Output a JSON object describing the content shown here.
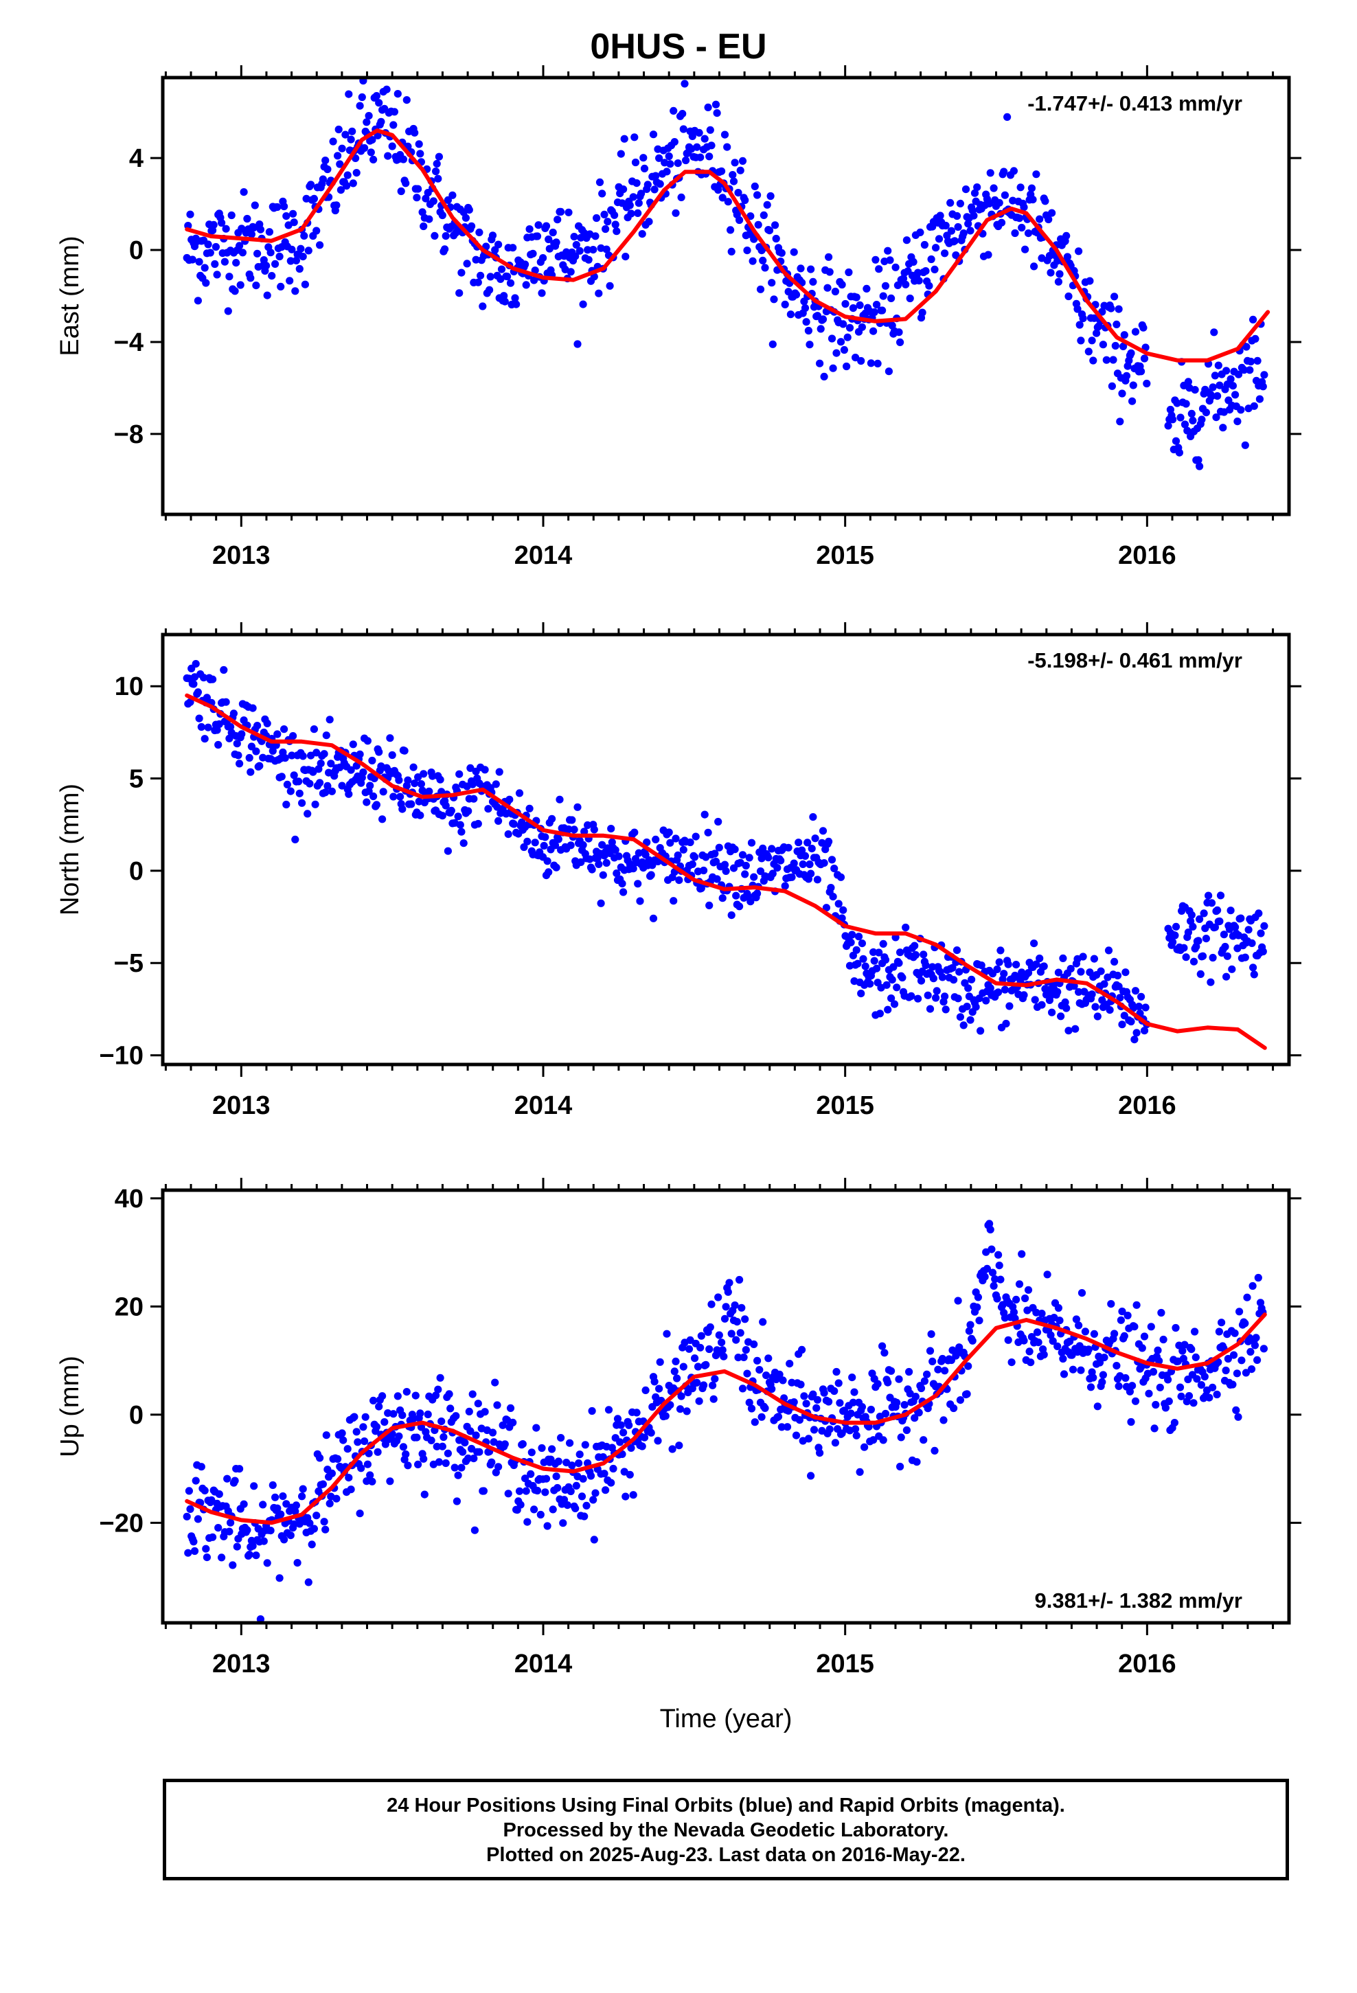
{
  "title": "0HUS - EU",
  "xlabel": "Time (year)",
  "footer": [
    "24 Hour Positions Using Final Orbits (blue) and Rapid Orbits (magenta).",
    "Processed by the Nevada Geodetic Laboratory.",
    "Plotted on 2025-Aug-23. Last data on 2016-May-22."
  ],
  "colors": {
    "final_orbits": "#0000ff",
    "model_fit": "#ff0000",
    "axes": "#000000"
  },
  "chart_data": [
    {
      "type": "scatter",
      "ylabel": "East (mm)",
      "rate": "-1.747+/- 0.413 mm/yr",
      "rate_position": "top-right",
      "xlim": [
        2012.74,
        2016.47
      ],
      "ylim": [
        -11.5,
        7.5
      ],
      "x_ticks": [
        2013,
        2014,
        2015,
        2016
      ],
      "x_tick_labels": [
        "2013",
        "2014",
        "2015",
        "2016"
      ],
      "y_ticks": [
        4,
        0,
        -4,
        -8
      ],
      "y_tick_labels": [
        "4",
        "0",
        "−4",
        "−8"
      ],
      "grid": false,
      "fit_line": {
        "x": [
          2012.82,
          2012.9,
          2013.0,
          2013.1,
          2013.2,
          2013.3,
          2013.4,
          2013.45,
          2013.5,
          2013.6,
          2013.7,
          2013.8,
          2013.9,
          2014.0,
          2014.1,
          2014.2,
          2014.3,
          2014.4,
          2014.47,
          2014.55,
          2014.6,
          2014.7,
          2014.8,
          2014.9,
          2015.0,
          2015.1,
          2015.2,
          2015.3,
          2015.4,
          2015.47,
          2015.55,
          2015.6,
          2015.7,
          2015.8,
          2015.9,
          2016.0,
          2016.1,
          2016.2,
          2016.3,
          2016.4
        ],
        "y": [
          0.9,
          0.6,
          0.5,
          0.4,
          0.9,
          2.8,
          4.8,
          5.2,
          5.0,
          3.5,
          1.4,
          0.0,
          -0.8,
          -1.2,
          -1.3,
          -0.8,
          0.8,
          2.6,
          3.4,
          3.4,
          2.9,
          0.8,
          -1.0,
          -2.2,
          -2.9,
          -3.1,
          -3.0,
          -1.8,
          0.0,
          1.3,
          1.8,
          1.6,
          0.0,
          -2.2,
          -3.8,
          -4.5,
          -4.8,
          -4.8,
          -4.3,
          -2.7
        ]
      },
      "points": {
        "segments": [
          [
            2012.82,
            2016.0
          ],
          [
            2016.07,
            2016.39
          ]
        ],
        "trend": {
          "x": [
            2012.82,
            2013.0,
            2013.1,
            2013.2,
            2013.3,
            2013.4,
            2013.45,
            2013.5,
            2013.6,
            2013.7,
            2013.8,
            2013.9,
            2014.0,
            2014.1,
            2014.2,
            2014.3,
            2014.4,
            2014.47,
            2014.55,
            2014.6,
            2014.7,
            2014.8,
            2014.9,
            2015.0,
            2015.1,
            2015.2,
            2015.3,
            2015.4,
            2015.47,
            2015.55,
            2015.6,
            2015.7,
            2015.8,
            2015.9,
            2016.0,
            2016.07,
            2016.15,
            2016.25,
            2016.39
          ],
          "y": [
            0.0,
            0.3,
            0.2,
            0.5,
            2.8,
            5.0,
            5.4,
            5.0,
            3.2,
            1.0,
            -0.6,
            -1.2,
            0.6,
            -0.4,
            0.6,
            2.4,
            3.4,
            4.2,
            4.3,
            3.8,
            0.9,
            -1.2,
            -2.4,
            -3.1,
            -3.0,
            -1.8,
            0.2,
            1.3,
            2.1,
            2.2,
            1.6,
            -0.3,
            -2.8,
            -4.5,
            -5.0,
            -8.5,
            -6.8,
            -6.0,
            -4.8
          ]
        },
        "scatter": 1.1
      }
    },
    {
      "type": "scatter",
      "ylabel": "North (mm)",
      "rate": "-5.198+/- 0.461 mm/yr",
      "rate_position": "top-right",
      "xlim": [
        2012.74,
        2016.47
      ],
      "ylim": [
        -10.5,
        12.8
      ],
      "x_ticks": [
        2013,
        2014,
        2015,
        2016
      ],
      "x_tick_labels": [
        "2013",
        "2014",
        "2015",
        "2016"
      ],
      "y_ticks": [
        10,
        5,
        0,
        -5,
        -10
      ],
      "y_tick_labels": [
        "10",
        "5",
        "0",
        "−5",
        "−10"
      ],
      "grid": false,
      "fit_line": {
        "x": [
          2012.82,
          2012.9,
          2013.0,
          2013.1,
          2013.2,
          2013.3,
          2013.4,
          2013.5,
          2013.6,
          2013.7,
          2013.8,
          2013.9,
          2014.0,
          2014.1,
          2014.2,
          2014.3,
          2014.4,
          2014.5,
          2014.6,
          2014.7,
          2014.8,
          2014.9,
          2015.0,
          2015.1,
          2015.2,
          2015.3,
          2015.4,
          2015.5,
          2015.6,
          2015.7,
          2015.8,
          2015.9,
          2016.0,
          2016.1,
          2016.2,
          2016.3,
          2016.39
        ],
        "y": [
          9.5,
          8.9,
          7.8,
          7.0,
          7.0,
          6.8,
          5.8,
          4.6,
          4.0,
          4.1,
          4.4,
          3.3,
          2.2,
          1.9,
          1.9,
          1.7,
          0.6,
          -0.5,
          -1.0,
          -0.9,
          -1.1,
          -1.9,
          -3.0,
          -3.4,
          -3.4,
          -4.0,
          -5.1,
          -6.1,
          -6.2,
          -5.9,
          -6.1,
          -7.1,
          -8.3,
          -8.7,
          -8.5,
          -8.6,
          -9.6
        ]
      },
      "points": {
        "segments": [
          [
            2012.82,
            2016.0
          ],
          [
            2016.07,
            2016.39
          ]
        ],
        "trend": {
          "x": [
            2012.82,
            2012.9,
            2013.0,
            2013.1,
            2013.2,
            2013.3,
            2013.4,
            2013.5,
            2013.6,
            2013.7,
            2013.8,
            2013.9,
            2014.0,
            2014.1,
            2014.2,
            2014.3,
            2014.4,
            2014.5,
            2014.6,
            2014.7,
            2014.8,
            2014.9,
            2014.95,
            2015.02,
            2015.1,
            2015.2,
            2015.3,
            2015.4,
            2015.5,
            2015.6,
            2015.7,
            2015.8,
            2015.9,
            2016.0,
            2016.07,
            2016.2,
            2016.39
          ],
          "y": [
            10.5,
            9.0,
            7.8,
            6.5,
            5.5,
            5.0,
            5.5,
            4.8,
            4.0,
            3.0,
            4.6,
            2.8,
            1.4,
            2.0,
            1.0,
            0.2,
            0.4,
            0.8,
            0.4,
            -0.4,
            0.2,
            0.6,
            -0.3,
            -5.0,
            -6.0,
            -5.3,
            -5.6,
            -6.5,
            -6.4,
            -6.0,
            -6.3,
            -6.6,
            -6.6,
            -8.2,
            -3.2,
            -3.4,
            -3.8
          ]
        },
        "scatter": 1.0
      }
    },
    {
      "type": "scatter",
      "ylabel": "Up (mm)",
      "rate": "9.381+/- 1.382 mm/yr",
      "rate_position": "bottom-right",
      "xlim": [
        2012.74,
        2016.47
      ],
      "ylim": [
        -38.5,
        41.5
      ],
      "x_ticks": [
        2013,
        2014,
        2015,
        2016
      ],
      "x_tick_labels": [
        "2013",
        "2014",
        "2015",
        "2016"
      ],
      "y_ticks": [
        40,
        20,
        0,
        -20
      ],
      "y_tick_labels": [
        "40",
        "20",
        "0",
        "−20"
      ],
      "grid": false,
      "fit_line": {
        "x": [
          2012.82,
          2012.9,
          2013.0,
          2013.1,
          2013.2,
          2013.3,
          2013.4,
          2013.5,
          2013.6,
          2013.7,
          2013.8,
          2013.9,
          2014.0,
          2014.1,
          2014.2,
          2014.3,
          2014.4,
          2014.5,
          2014.6,
          2014.7,
          2014.8,
          2014.9,
          2015.0,
          2015.1,
          2015.2,
          2015.3,
          2015.4,
          2015.5,
          2015.6,
          2015.7,
          2015.8,
          2015.9,
          2016.0,
          2016.1,
          2016.2,
          2016.3,
          2016.39
        ],
        "y": [
          -16,
          -18,
          -19.5,
          -20,
          -18.5,
          -13.5,
          -7,
          -2.5,
          -1.5,
          -3,
          -5.5,
          -8,
          -10,
          -10.5,
          -9,
          -4.5,
          2,
          7,
          8,
          5.5,
          2,
          -0.5,
          -1.5,
          -1.5,
          0,
          3.5,
          10,
          16,
          17.5,
          16,
          14,
          11.5,
          9.5,
          8.5,
          9.5,
          13,
          18.5
        ]
      },
      "points": {
        "segments": [
          [
            2012.82,
            2016.39
          ]
        ],
        "trend": {
          "x": [
            2012.82,
            2012.9,
            2013.0,
            2013.05,
            2013.1,
            2013.2,
            2013.3,
            2013.4,
            2013.5,
            2013.6,
            2013.7,
            2013.8,
            2013.9,
            2014.0,
            2014.1,
            2014.2,
            2014.3,
            2014.4,
            2014.5,
            2014.6,
            2014.62,
            2014.7,
            2014.8,
            2014.9,
            2015.0,
            2015.1,
            2015.2,
            2015.3,
            2015.4,
            2015.47,
            2015.52,
            2015.6,
            2015.7,
            2015.8,
            2015.9,
            2016.0,
            2016.1,
            2016.2,
            2016.3,
            2016.39
          ],
          "y": [
            -16,
            -18,
            -20,
            -26,
            -20,
            -18,
            -13,
            -6,
            -2,
            -2,
            -3,
            -5,
            -7,
            -14,
            -12,
            -9,
            -4,
            2,
            8,
            14,
            20,
            6,
            2,
            -1,
            1,
            0,
            2,
            5,
            9,
            28,
            22,
            15,
            14,
            12,
            11,
            8,
            6,
            9,
            13,
            18
          ]
        },
        "scatter": 4.5
      }
    }
  ]
}
